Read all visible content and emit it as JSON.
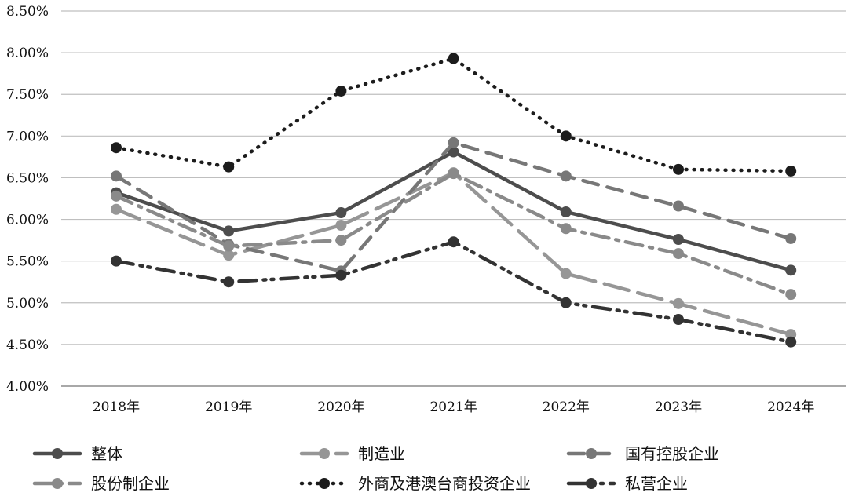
{
  "chart_data": {
    "type": "line",
    "title": "",
    "xlabel": "",
    "ylabel": "",
    "categories": [
      "2018年",
      "2019年",
      "2020年",
      "2021年",
      "2022年",
      "2023年",
      "2024年"
    ],
    "ylim": [
      4.0,
      8.5
    ],
    "yticks": [
      "4.00%",
      "4.50%",
      "5.00%",
      "5.50%",
      "6.00%",
      "6.50%",
      "7.00%",
      "7.50%",
      "8.00%",
      "8.50%"
    ],
    "grid": "horizontal",
    "legend_position": "bottom",
    "series": [
      {
        "name": "整体",
        "values": [
          6.32,
          5.86,
          6.08,
          6.81,
          6.09,
          5.76,
          5.39
        ],
        "color": "#4d4d4d",
        "dash": "solid"
      },
      {
        "name": "制造业",
        "values": [
          6.12,
          5.57,
          5.93,
          6.56,
          5.35,
          4.99,
          4.62
        ],
        "color": "#969696",
        "dash": "longdash"
      },
      {
        "name": "国有控股企业",
        "values": [
          6.52,
          5.7,
          5.38,
          6.92,
          6.52,
          6.16,
          5.77
        ],
        "color": "#777777",
        "dash": "dash"
      },
      {
        "name": "股份制企业",
        "values": [
          6.28,
          5.68,
          5.75,
          6.55,
          5.89,
          5.59,
          5.1
        ],
        "color": "#8a8a8a",
        "dash": "dashdot"
      },
      {
        "name": "外商及港澳台商投资企业",
        "values": [
          6.86,
          6.63,
          7.54,
          7.93,
          7.0,
          6.6,
          6.58
        ],
        "color": "#1c1c1c",
        "dash": "dot"
      },
      {
        "name": "私营企业",
        "values": [
          5.5,
          5.25,
          5.33,
          5.73,
          5.0,
          4.8,
          4.53
        ],
        "color": "#333333",
        "dash": "dashdotdot"
      }
    ]
  }
}
